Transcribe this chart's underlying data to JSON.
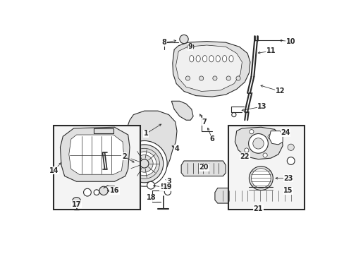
{
  "bg_color": "#ffffff",
  "fig_width": 4.89,
  "fig_height": 3.6,
  "dpi": 100,
  "lw": 0.8,
  "gray": "#2a2a2a",
  "fillgray": "#e0e0e0",
  "lightfill": "#f0f0f0"
}
